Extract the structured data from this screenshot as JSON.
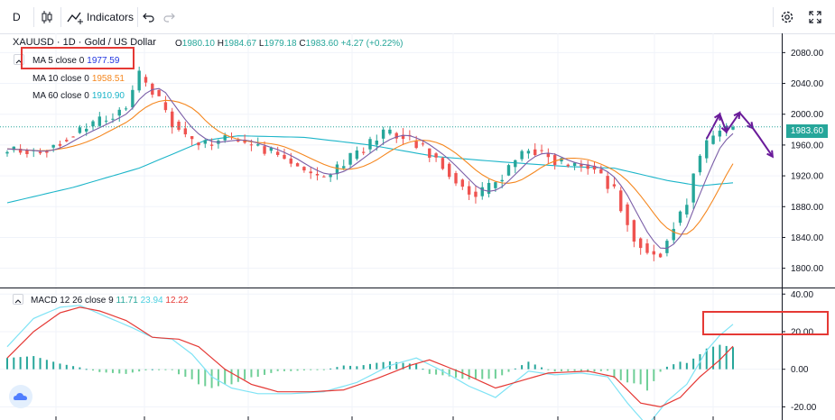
{
  "toolbar": {
    "interval": "D",
    "indicators_label": "Indicators"
  },
  "header": {
    "symbol_title": "XAUUSD · 1D · Gold / US Dollar",
    "ohlc": {
      "o_label": "O",
      "o": "1980.10",
      "h_label": "H",
      "h": "1984.67",
      "l_label": "L",
      "l": "1979.18",
      "c_label": "C",
      "c": "1983.60",
      "change": "+4.27 (+0.22%)"
    }
  },
  "legend": {
    "ma5": {
      "label": "MA 5 close 0",
      "value": "1977.59"
    },
    "ma10": {
      "label": "MA 10 close 0",
      "value": "1958.51"
    },
    "ma60": {
      "label": "MA 60 close 0",
      "value": "1910.90"
    },
    "macd": {
      "label": "MACD 12 26 close 9",
      "v1": "11.71",
      "v2": "23.94",
      "v3": "12.22"
    }
  },
  "price_tag": "1983.60",
  "colors": {
    "up": "#26a69a",
    "down": "#ef5350",
    "ma5": "#7b5ea7",
    "ma10": "#f5871f",
    "ma60": "#1cb5c9",
    "macd_fast": "#7fe3f5",
    "macd_signal": "#e53935",
    "hist_pos": "#26a69a",
    "arrow": "#6a1b9a",
    "annotation": "#e53935"
  },
  "chart_data": [
    {
      "type": "candlestick",
      "title": "XAUUSD · 1D · Gold / US Dollar",
      "ylim": [
        1775,
        2105
      ],
      "y_ticks": [
        {
          "value": 2080,
          "label": "2080.00"
        },
        {
          "value": 2040,
          "label": "2040.00"
        },
        {
          "value": 2000,
          "label": "2000.00"
        },
        {
          "value": 1960,
          "label": "1960.00"
        },
        {
          "value": 1920,
          "label": "1920.00"
        },
        {
          "value": 1880,
          "label": "1880.00"
        },
        {
          "value": 1840,
          "label": "1840.00"
        },
        {
          "value": 1800,
          "label": "1800.00"
        }
      ],
      "close_anchors": [
        [
          0,
          1955
        ],
        [
          5,
          1950
        ],
        [
          10,
          1975
        ],
        [
          14,
          1990
        ],
        [
          18,
          2010
        ],
        [
          20,
          2050
        ],
        [
          22,
          2030
        ],
        [
          25,
          1990
        ],
        [
          28,
          1965
        ],
        [
          30,
          1960
        ],
        [
          33,
          1970
        ],
        [
          37,
          1960
        ],
        [
          41,
          1948
        ],
        [
          45,
          1925
        ],
        [
          48,
          1918
        ],
        [
          50,
          1930
        ],
        [
          55,
          1962
        ],
        [
          57,
          1975
        ],
        [
          60,
          1972
        ],
        [
          63,
          1955
        ],
        [
          66,
          1935
        ],
        [
          69,
          1905
        ],
        [
          71,
          1892
        ],
        [
          74,
          1912
        ],
        [
          77,
          1940
        ],
        [
          79,
          1955
        ],
        [
          82,
          1945
        ],
        [
          85,
          1932
        ],
        [
          88,
          1935
        ],
        [
          90,
          1920
        ],
        [
          92,
          1900
        ],
        [
          94,
          1862
        ],
        [
          95,
          1840
        ],
        [
          97,
          1822
        ],
        [
          99,
          1818
        ],
        [
          101,
          1858
        ],
        [
          103,
          1885
        ],
        [
          104,
          1925
        ],
        [
          106,
          1962
        ],
        [
          108,
          1978
        ],
        [
          110,
          1983.6
        ]
      ],
      "ma60_anchors": [
        [
          0,
          1885
        ],
        [
          10,
          1905
        ],
        [
          20,
          1930
        ],
        [
          25,
          1948
        ],
        [
          30,
          1966
        ],
        [
          35,
          1972
        ],
        [
          45,
          1970
        ],
        [
          55,
          1960
        ],
        [
          65,
          1945
        ],
        [
          75,
          1938
        ],
        [
          85,
          1932
        ],
        [
          92,
          1930
        ],
        [
          100,
          1914
        ],
        [
          105,
          1907
        ],
        [
          110,
          1911
        ]
      ],
      "last_close": 1983.6,
      "projection": [
        {
          "x": 106,
          "y": 1968
        },
        {
          "x": 108,
          "y": 2000
        },
        {
          "x": 109,
          "y": 1977
        },
        {
          "x": 111,
          "y": 2002
        },
        {
          "x": 113,
          "y": 1982
        },
        {
          "x": 114,
          "y": 1970
        },
        {
          "x": 116,
          "y": 1945
        }
      ]
    },
    {
      "type": "line",
      "title": "MACD 12 26 close 9",
      "ylim": [
        -27,
        43
      ],
      "y_ticks": [
        {
          "value": 40,
          "label": "40.00"
        },
        {
          "value": 20,
          "label": "20.00"
        },
        {
          "value": 0,
          "label": "0.00"
        },
        {
          "value": -20,
          "label": "-20.00"
        }
      ],
      "series": [
        {
          "name": "MACD",
          "anchors": [
            [
              0,
              12
            ],
            [
              4,
              27
            ],
            [
              8,
              33
            ],
            [
              11,
              34
            ],
            [
              15,
              28
            ],
            [
              19,
              22
            ],
            [
              22,
              17
            ],
            [
              25,
              16
            ],
            [
              28,
              8
            ],
            [
              31,
              -4
            ],
            [
              34,
              -10
            ],
            [
              38,
              -13
            ],
            [
              43,
              -13
            ],
            [
              48,
              -12
            ],
            [
              53,
              -7
            ],
            [
              58,
              2
            ],
            [
              62,
              6
            ],
            [
              66,
              -1
            ],
            [
              70,
              -9
            ],
            [
              74,
              -15
            ],
            [
              79,
              -1
            ],
            [
              83,
              -3
            ],
            [
              87,
              -2
            ],
            [
              91,
              -4
            ],
            [
              94,
              -18
            ],
            [
              97,
              -30
            ],
            [
              100,
              -17
            ],
            [
              103,
              -8
            ],
            [
              106,
              10
            ],
            [
              108,
              18
            ],
            [
              110,
              23.94
            ]
          ]
        },
        {
          "name": "Signal",
          "anchors": [
            [
              0,
              6
            ],
            [
              4,
              20
            ],
            [
              8,
              30
            ],
            [
              11,
              33
            ],
            [
              14,
              31
            ],
            [
              18,
              26
            ],
            [
              22,
              17
            ],
            [
              26,
              16
            ],
            [
              29,
              12
            ],
            [
              33,
              0
            ],
            [
              37,
              -8
            ],
            [
              41,
              -12
            ],
            [
              46,
              -12
            ],
            [
              51,
              -11
            ],
            [
              56,
              -5
            ],
            [
              61,
              2
            ],
            [
              64,
              5
            ],
            [
              69,
              -2
            ],
            [
              74,
              -10
            ],
            [
              78,
              -6
            ],
            [
              82,
              -2
            ],
            [
              88,
              -1
            ],
            [
              92,
              -4
            ],
            [
              96,
              -18
            ],
            [
              99,
              -20
            ],
            [
              102,
              -15
            ],
            [
              105,
              -4
            ],
            [
              108,
              5
            ],
            [
              110,
              12.22
            ]
          ]
        }
      ]
    }
  ]
}
